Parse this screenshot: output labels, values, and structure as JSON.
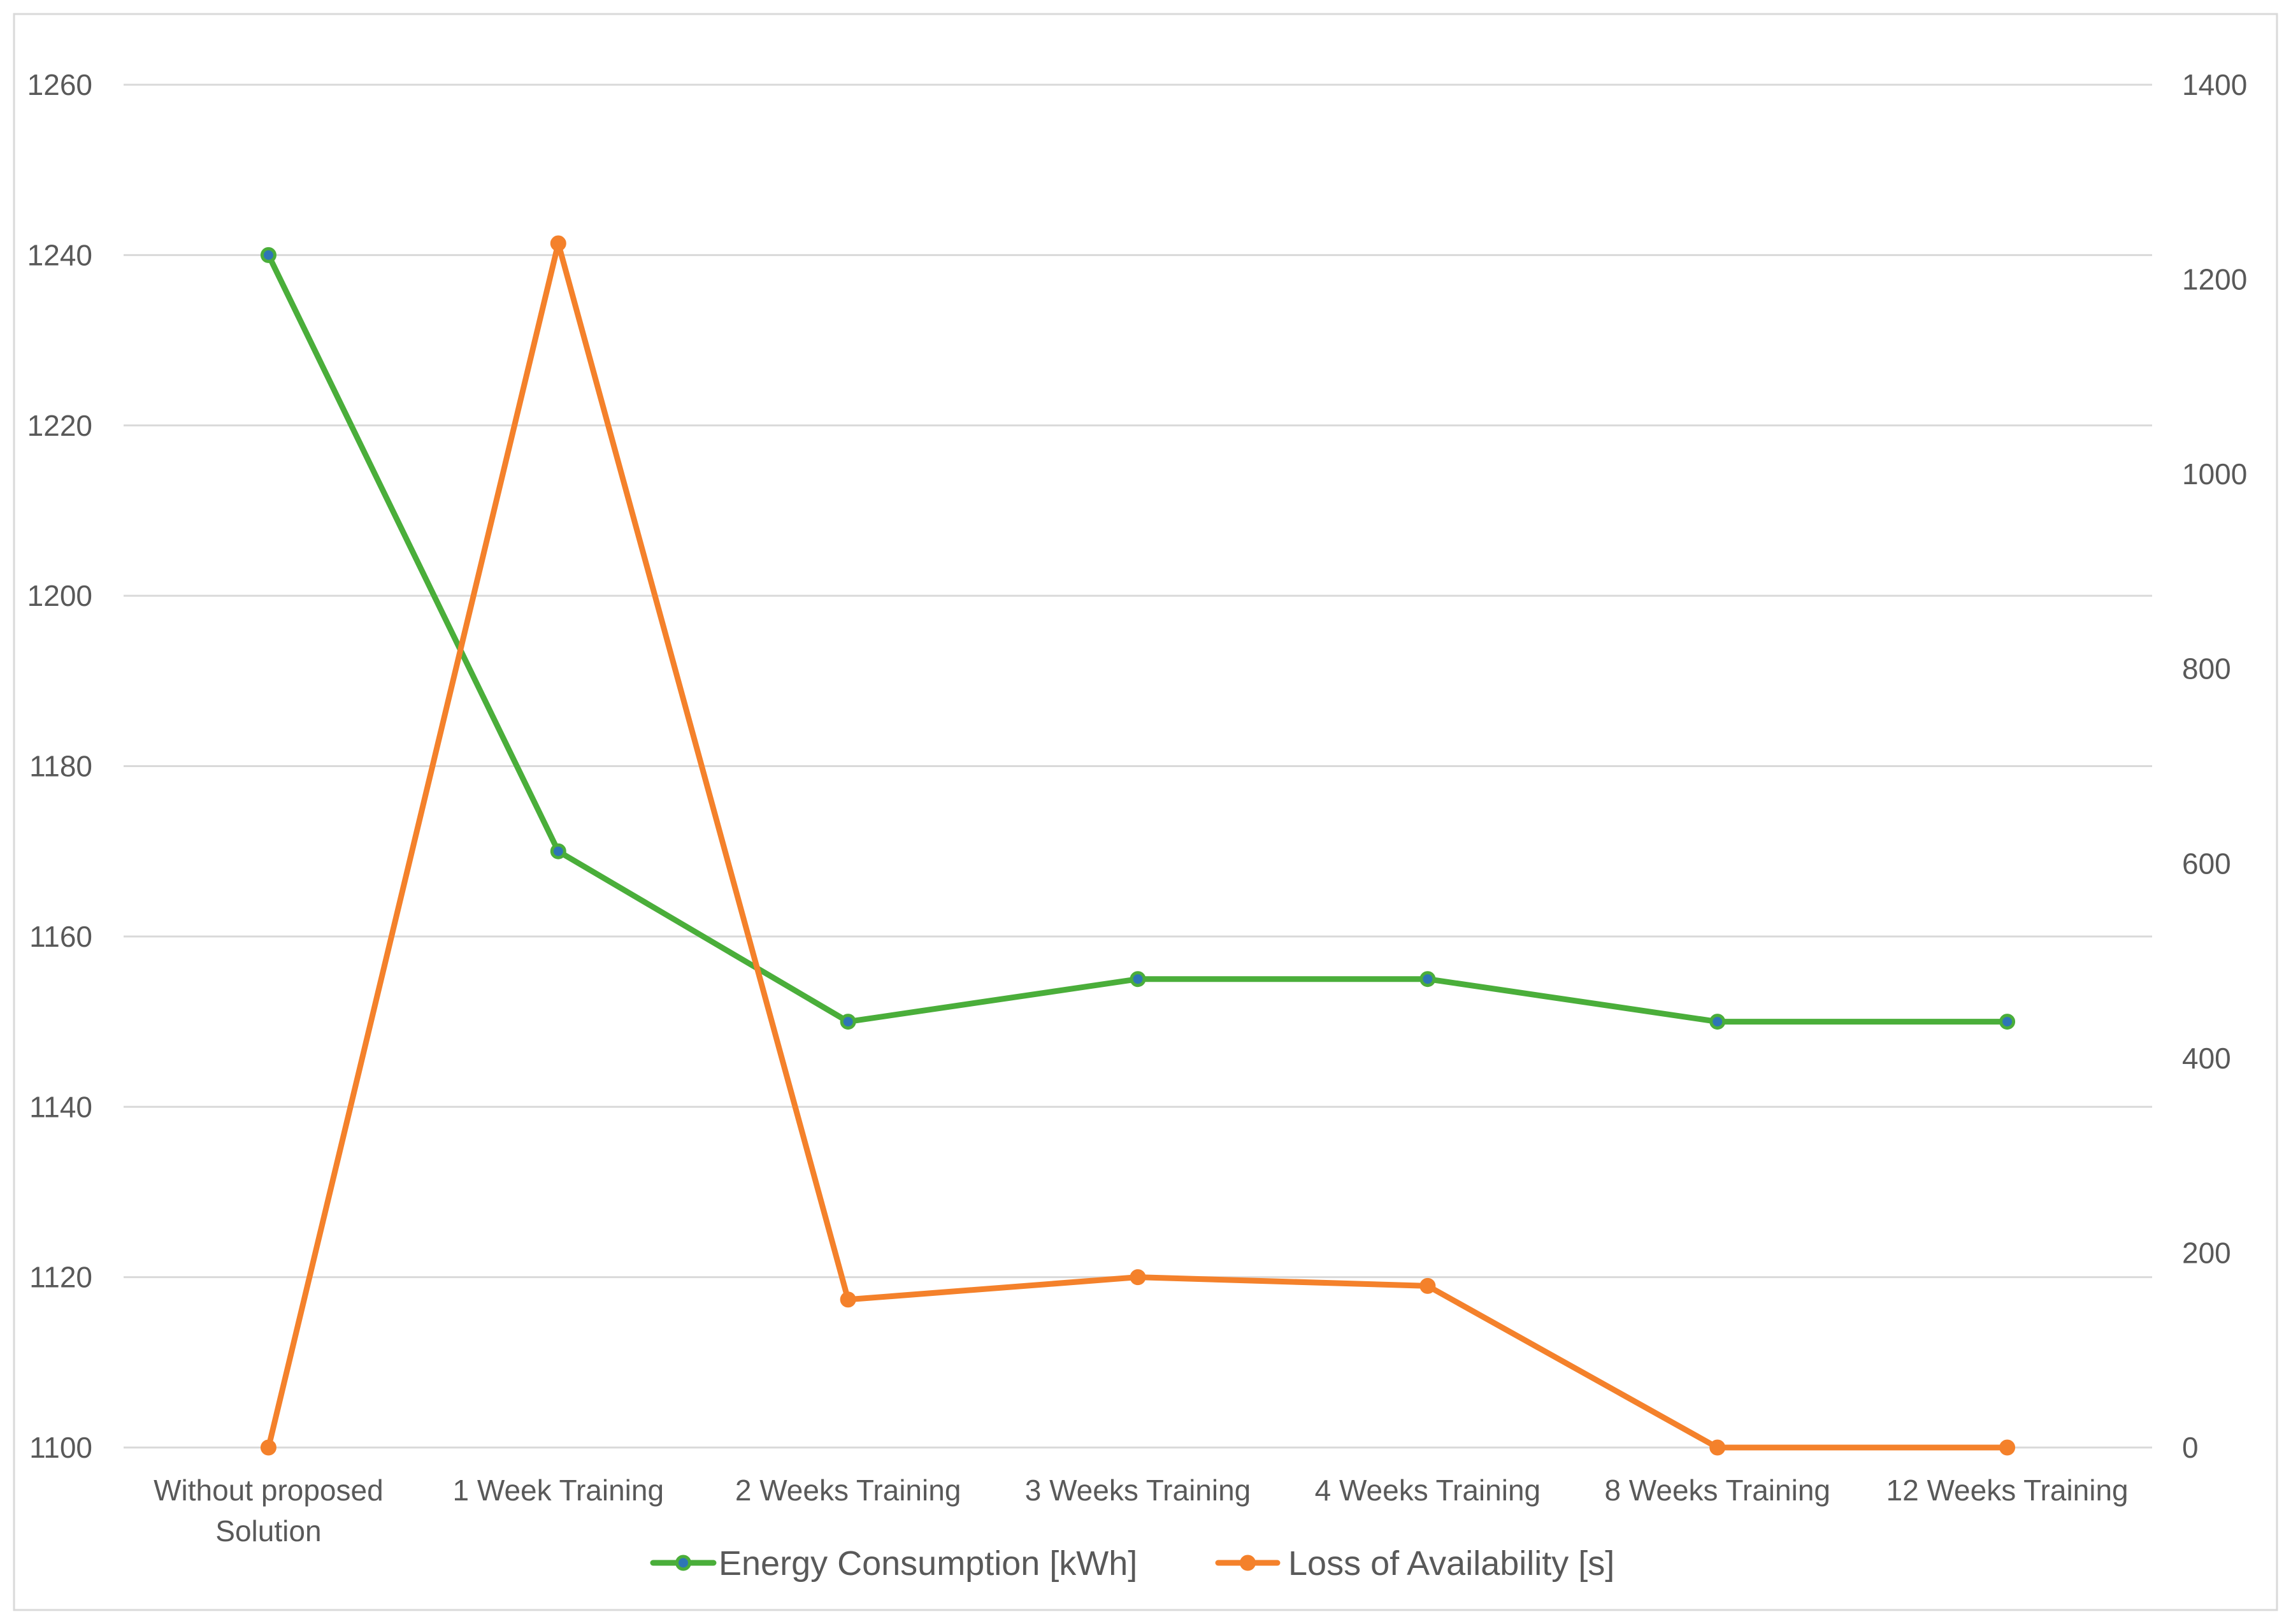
{
  "chart_data": {
    "type": "line",
    "title": "",
    "xlabel": "",
    "ylabel": "",
    "categories": [
      [
        "Without proposed",
        "Solution"
      ],
      [
        "1 Week Training"
      ],
      [
        "2 Weeks Training"
      ],
      [
        "3 Weeks Training"
      ],
      [
        "4 Weeks Training"
      ],
      [
        "8 Weeks Training"
      ],
      [
        "12 Weeks Training"
      ]
    ],
    "y_left": {
      "min": 1100,
      "max": 1260,
      "ticks": [
        1100,
        1120,
        1140,
        1160,
        1180,
        1200,
        1220,
        1240,
        1260
      ]
    },
    "y_right": {
      "min": 0,
      "max": 1400,
      "ticks": [
        0,
        200,
        400,
        600,
        800,
        1000,
        1200,
        1400
      ]
    },
    "grid": true,
    "legend_position": "bottom",
    "series": [
      {
        "name": "Energy Consumption [kWh]",
        "axis": "left",
        "color": "#4aae3a",
        "marker_color": "#2e75b6",
        "values": [
          1240,
          1170,
          1150,
          1155,
          1155,
          1150,
          1150
        ]
      },
      {
        "name": "Loss of Availability [s]",
        "axis": "right",
        "color": "#f4812b",
        "marker_color": "#f4812b",
        "values": [
          0,
          1237,
          152,
          175,
          166,
          0,
          0
        ]
      }
    ]
  }
}
